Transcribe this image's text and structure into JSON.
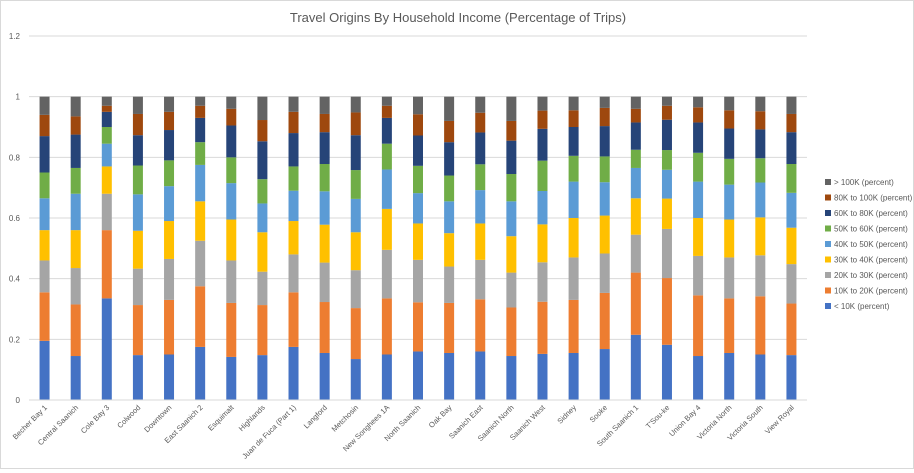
{
  "chart_data": {
    "type": "bar",
    "stacked": true,
    "title": "Travel Origins By Household Income (Percentage of Trips)",
    "xlabel": "",
    "ylabel": "",
    "ylim": [
      0,
      1.2
    ],
    "yticks": [
      "0",
      "0.2",
      "0.4",
      "0.6",
      "0.8",
      "1",
      "1.2"
    ],
    "grid": true,
    "legend_position": "right",
    "categories": [
      "Becher Bay 1",
      "Central Saanich",
      "Cole Bay 3",
      "Colwood",
      "Downtown",
      "East Saanich 2",
      "Esquimalt",
      "Highlands",
      "Juan de Fuca (Part 1)",
      "Langford",
      "Metchosin",
      "New Songhees 1A",
      "North Saanich",
      "Oak Bay",
      "Saanich East",
      "Saanich North",
      "Saanich West",
      "Sidney",
      "Sooke",
      "South Saanich 1",
      "T'Sou-ke",
      "Union Bay 4",
      "Victoria North",
      "Victoria South",
      "View Royal"
    ],
    "series": [
      {
        "name": "< 10K (percent)",
        "color": "#4472c4",
        "values": [
          0.195,
          0.145,
          0.335,
          0.148,
          0.15,
          0.175,
          0.142,
          0.148,
          0.175,
          0.155,
          0.135,
          0.15,
          0.16,
          0.155,
          0.16,
          0.145,
          0.152,
          0.155,
          0.168,
          0.215,
          0.182,
          0.145,
          0.155,
          0.15,
          0.148
        ]
      },
      {
        "name": "10K to 20K (percent)",
        "color": "#ed7d31",
        "values": [
          0.16,
          0.17,
          0.225,
          0.165,
          0.18,
          0.2,
          0.178,
          0.165,
          0.18,
          0.168,
          0.168,
          0.185,
          0.162,
          0.165,
          0.172,
          0.16,
          0.172,
          0.175,
          0.185,
          0.205,
          0.22,
          0.2,
          0.18,
          0.192,
          0.17
        ]
      },
      {
        "name": "20K to 30K (percent)",
        "color": "#a5a5a5",
        "values": [
          0.105,
          0.12,
          0.12,
          0.12,
          0.135,
          0.15,
          0.14,
          0.11,
          0.125,
          0.13,
          0.125,
          0.16,
          0.14,
          0.12,
          0.13,
          0.115,
          0.13,
          0.14,
          0.13,
          0.125,
          0.162,
          0.13,
          0.135,
          0.135,
          0.13
        ]
      },
      {
        "name": "30K to 40K (percent)",
        "color": "#ffc000",
        "values": [
          0.1,
          0.125,
          0.09,
          0.125,
          0.125,
          0.13,
          0.135,
          0.13,
          0.11,
          0.125,
          0.125,
          0.135,
          0.12,
          0.11,
          0.12,
          0.12,
          0.125,
          0.13,
          0.125,
          0.12,
          0.1,
          0.125,
          0.125,
          0.125,
          0.12
        ]
      },
      {
        "name": "40K to 50K (percent)",
        "color": "#5b9bd5",
        "values": [
          0.105,
          0.12,
          0.075,
          0.12,
          0.115,
          0.12,
          0.12,
          0.095,
          0.1,
          0.11,
          0.11,
          0.13,
          0.1,
          0.105,
          0.11,
          0.115,
          0.11,
          0.12,
          0.11,
          0.1,
          0.095,
          0.12,
          0.115,
          0.115,
          0.115
        ]
      },
      {
        "name": "50K to 60K (percent)",
        "color": "#70ad47",
        "values": [
          0.085,
          0.085,
          0.055,
          0.095,
          0.085,
          0.075,
          0.085,
          0.08,
          0.08,
          0.09,
          0.095,
          0.085,
          0.09,
          0.085,
          0.085,
          0.09,
          0.1,
          0.085,
          0.085,
          0.06,
          0.065,
          0.095,
          0.085,
          0.08,
          0.095
        ]
      },
      {
        "name": "60K to 80K (percent)",
        "color": "#264478",
        "values": [
          0.12,
          0.11,
          0.05,
          0.1,
          0.1,
          0.08,
          0.105,
          0.125,
          0.11,
          0.105,
          0.115,
          0.085,
          0.1,
          0.11,
          0.105,
          0.11,
          0.105,
          0.095,
          0.1,
          0.09,
          0.1,
          0.1,
          0.1,
          0.095,
          0.105
        ]
      },
      {
        "name": "80K to 100K (percent)",
        "color": "#9e480e",
        "values": [
          0.07,
          0.06,
          0.02,
          0.07,
          0.06,
          0.04,
          0.055,
          0.07,
          0.07,
          0.06,
          0.075,
          0.04,
          0.07,
          0.07,
          0.065,
          0.065,
          0.06,
          0.055,
          0.06,
          0.045,
          0.046,
          0.05,
          0.06,
          0.06,
          0.06
        ]
      },
      {
        "name": "> 100K (percent)",
        "color": "#636363",
        "values": [
          0.06,
          0.065,
          0.03,
          0.057,
          0.05,
          0.03,
          0.04,
          0.077,
          0.05,
          0.057,
          0.052,
          0.03,
          0.058,
          0.08,
          0.053,
          0.08,
          0.046,
          0.045,
          0.037,
          0.04,
          0.03,
          0.035,
          0.045,
          0.048,
          0.057
        ]
      }
    ]
  }
}
